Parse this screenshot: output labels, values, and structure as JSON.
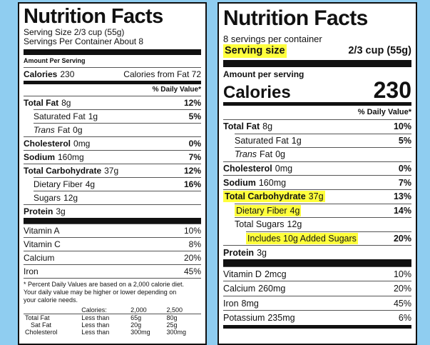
{
  "labels": [
    {
      "title": "Nutrition Facts",
      "serving_size": "Serving Size 2/3 cup (55g)",
      "servings_per_container": "Servings Per Container About 8",
      "amount_per_serving": "Amount Per Serving",
      "calories": {
        "label": "Calories",
        "value": "230",
        "from_fat": "Calories from Fat 72"
      },
      "daily_value_header": "% Daily Value*",
      "nutrients": [
        {
          "name": "Total Fat",
          "amount": "8g",
          "daily_value": "12%"
        },
        {
          "name": "Saturated Fat",
          "amount": "1g",
          "daily_value": "5%"
        },
        {
          "name_italic": "Trans",
          "name": "Fat",
          "amount": "0g"
        },
        {
          "name": "Cholesterol",
          "amount": "0mg",
          "daily_value": "0%"
        },
        {
          "name": "Sodium",
          "amount": "160mg",
          "daily_value": "7%"
        },
        {
          "name": "Total Carbohydrate",
          "amount": "37g",
          "daily_value": "12%"
        },
        {
          "name": "Dietary Fiber",
          "amount": "4g",
          "daily_value": "16%"
        },
        {
          "name": "Sugars",
          "amount": "12g"
        },
        {
          "name": "Protein",
          "amount": "3g"
        }
      ],
      "vitamins": [
        {
          "name": "Vitamin A",
          "daily_value": "10%"
        },
        {
          "name": "Vitamin C",
          "daily_value": "8%"
        },
        {
          "name": "Calcium",
          "daily_value": "20%"
        },
        {
          "name": "Iron",
          "daily_value": "45%"
        }
      ],
      "footnote": "* Percent Daily Values are based on a 2,000 calorie diet. Your daily value may be higher or lower depending on your calorie needs.",
      "footnote_table": {
        "header": [
          "Calories:",
          "2,000",
          "2,500"
        ],
        "rows": [
          [
            "Total Fat",
            "Less than",
            "65g",
            "80g"
          ],
          [
            "Sat Fat",
            "Less than",
            "20g",
            "25g"
          ],
          [
            "Cholesterol",
            "Less than",
            "300mg",
            "300mg"
          ]
        ]
      }
    },
    {
      "title": "Nutrition Facts",
      "servings_per_container": "8 servings per container",
      "serving_size": {
        "label": "Serving size",
        "value": "2/3 cup (55g)"
      },
      "amount_per_serving": "Amount per serving",
      "calories": {
        "label": "Calories",
        "value": "230"
      },
      "daily_value_header": "% Daily Value*",
      "nutrients": [
        {
          "name": "Total Fat",
          "amount": "8g",
          "daily_value": "10%"
        },
        {
          "name": "Saturated Fat",
          "amount": "1g",
          "daily_value": "5%"
        },
        {
          "name_italic": "Trans",
          "name": "Fat",
          "amount": "0g"
        },
        {
          "name": "Cholesterol",
          "amount": "0mg",
          "daily_value": "0%"
        },
        {
          "name": "Sodium",
          "amount": "160mg",
          "daily_value": "7%"
        },
        {
          "name": "Total Carbohydrate",
          "amount": "37g",
          "daily_value": "13%"
        },
        {
          "name": "Dietary Fiber",
          "amount": "4g",
          "daily_value": "14%"
        },
        {
          "name": "Total Sugars",
          "amount": "12g"
        },
        {
          "name": "Includes 10g Added Sugars",
          "daily_value": "20%"
        },
        {
          "name": "Protein",
          "amount": "3g"
        }
      ],
      "vitamins": [
        {
          "name": "Vitamin D",
          "amount": "2mcg",
          "daily_value": "10%"
        },
        {
          "name": "Calcium",
          "amount": "260mg",
          "daily_value": "20%"
        },
        {
          "name": "Iron",
          "amount": "8mg",
          "daily_value": "45%"
        },
        {
          "name": "Potassium",
          "amount": "235mg",
          "daily_value": "6%"
        }
      ]
    }
  ]
}
